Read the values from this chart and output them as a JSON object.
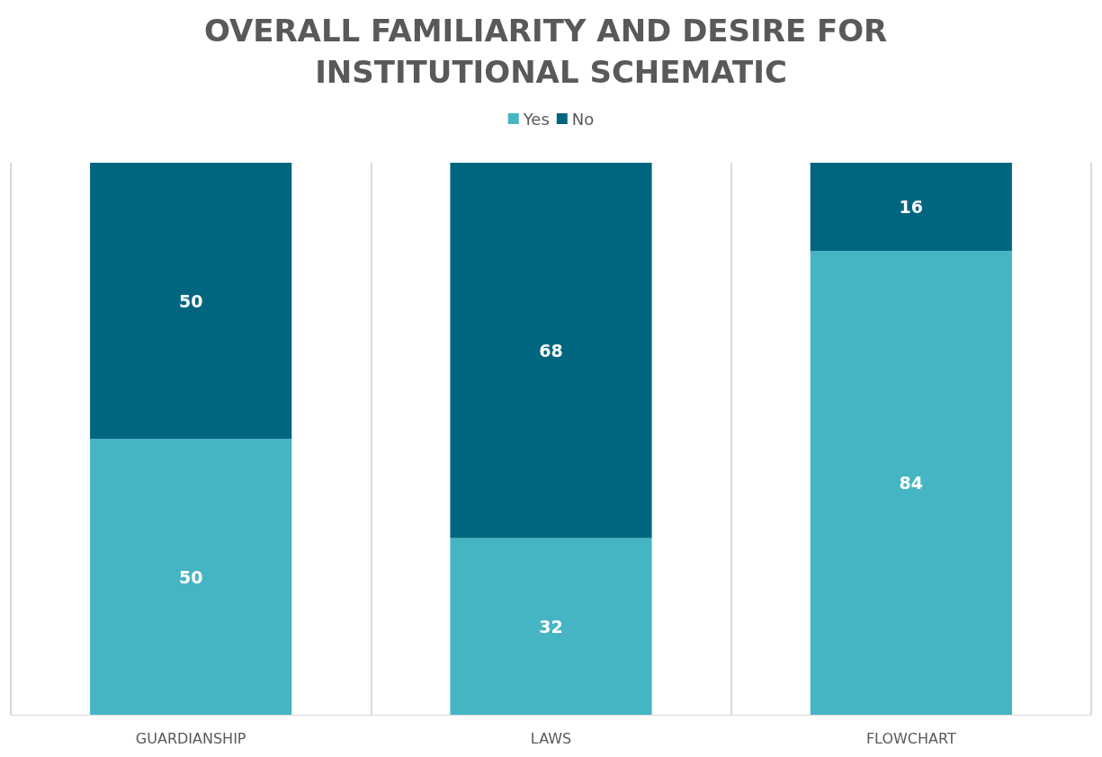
{
  "chart_data": {
    "type": "bar",
    "title": "OVERALL FAMILIARITY AND DESIRE FOR INSTITUTIONAL SCHEMATIC",
    "categories": [
      "GUARDIANSHIP",
      "LAWS",
      "FLOWCHART"
    ],
    "stacked": true,
    "data_labels": true,
    "legend": "top",
    "grid": "x",
    "tick_labels": "x",
    "series": [
      {
        "name": "Yes",
        "color": "#45b5c4",
        "values": [
          50,
          32,
          84
        ]
      },
      {
        "name": "No",
        "color": "#006680",
        "values": [
          50,
          68,
          16
        ]
      }
    ]
  }
}
